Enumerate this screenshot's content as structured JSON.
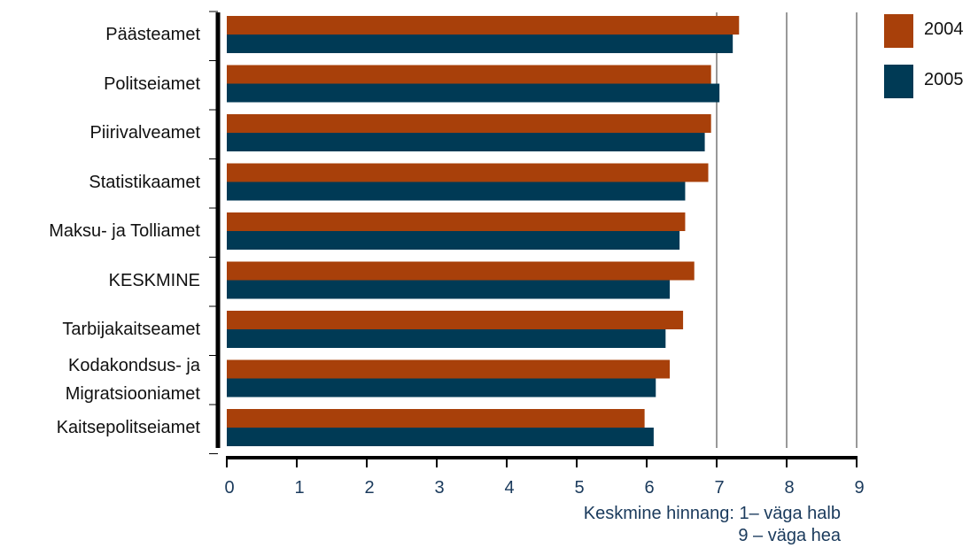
{
  "chart_data": {
    "type": "bar",
    "orientation": "horizontal",
    "categories": [
      [
        "Päästeamet"
      ],
      [
        "Politseiamet"
      ],
      [
        "Piirivalveamet"
      ],
      [
        "Statistikaamet"
      ],
      [
        "Maksu- ja Tolliamet"
      ],
      [
        "KESKMINE"
      ],
      [
        "Tarbijakaitseamet"
      ],
      [
        "Kodakondsus- ja",
        "Migratsiooniamet"
      ],
      [
        "Kaitsepolitseiamet"
      ]
    ],
    "series": [
      {
        "name": "2004",
        "color": "#a8400a",
        "values": [
          7.32,
          6.92,
          6.92,
          6.88,
          6.55,
          6.68,
          6.52,
          6.33,
          5.97
        ]
      },
      {
        "name": "2005",
        "color": "#003a55",
        "values": [
          7.23,
          7.04,
          6.83,
          6.55,
          6.47,
          6.33,
          6.27,
          6.13,
          6.1
        ]
      }
    ],
    "xlim": [
      0,
      9
    ],
    "xticks": [
      "0",
      "1",
      "2",
      "3",
      "4",
      "5",
      "6",
      "7",
      "8",
      "9"
    ],
    "gridlines_at": [
      7,
      8,
      9
    ],
    "xlabel_lines": [
      "Keskmine hinnang: 1– väga halb",
      "9 – väga hea"
    ],
    "legend_position": "right"
  }
}
